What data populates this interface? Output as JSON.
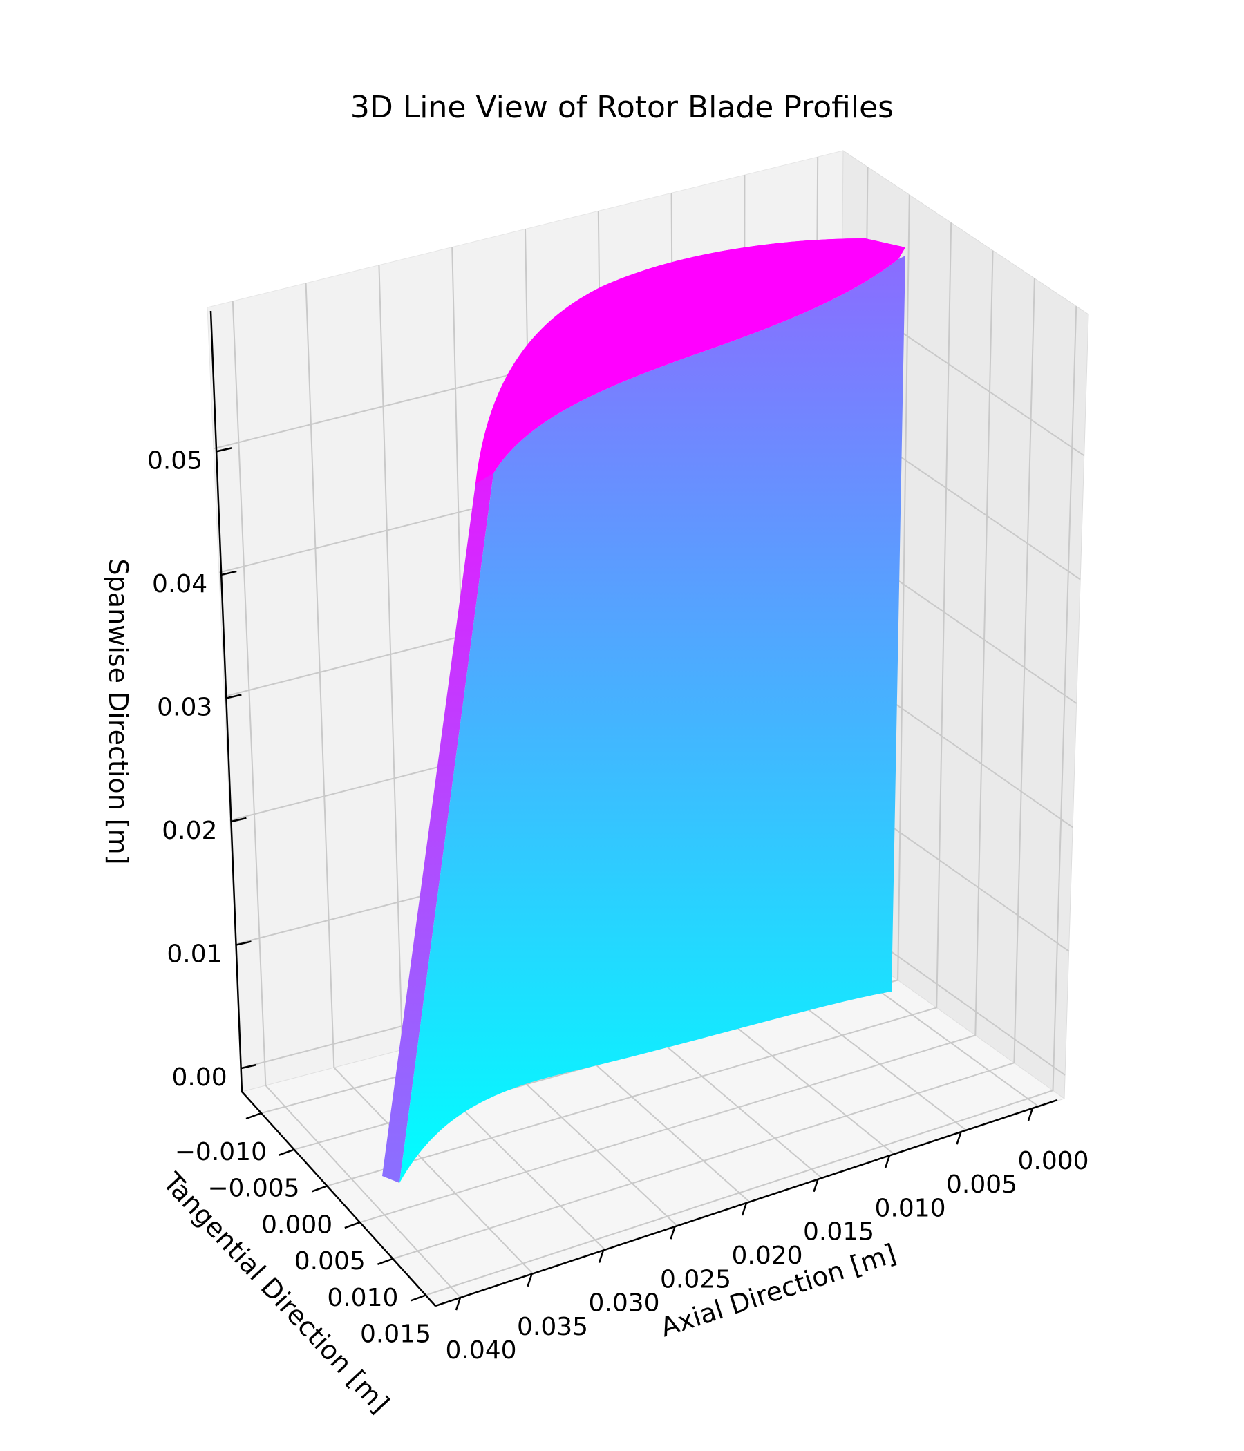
{
  "chart_data": {
    "type": "surface3d",
    "title": "3D Line View of Rotor Blade Profiles",
    "x_axis": {
      "label": "Axial Direction [m]",
      "ticks": [
        "0.000",
        "0.005",
        "0.010",
        "0.015",
        "0.020",
        "0.025",
        "0.030",
        "0.035",
        "0.040"
      ]
    },
    "y_axis": {
      "label": "Tangential Direction [m]",
      "ticks": [
        "−0.010",
        "−0.005",
        "0.000",
        "0.005",
        "0.010",
        "0.015"
      ]
    },
    "z_axis": {
      "label": "Spanwise Direction [m]",
      "ticks": [
        "0.00",
        "0.01",
        "0.02",
        "0.03",
        "0.04",
        "0.05"
      ]
    },
    "colormap": [
      "#00ffff",
      "#ff00ff"
    ],
    "grid": true
  }
}
